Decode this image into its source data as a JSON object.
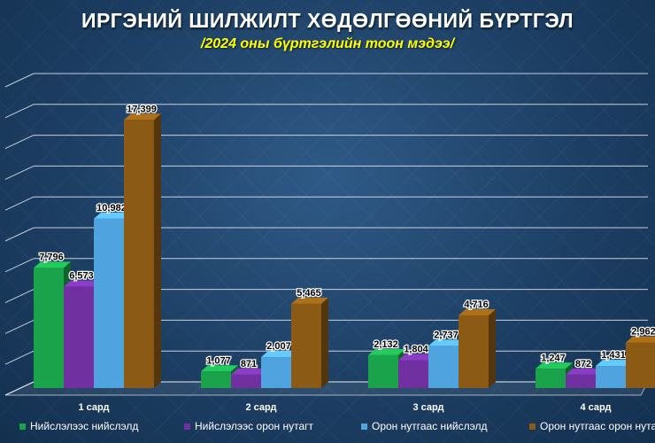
{
  "title": "ИРГЭНИЙ ШИЛЖИЛТ ХӨДӨЛГӨӨНИЙ БҮРТГЭЛ",
  "subtitle": "/2024 оны бүртгэлийн тоон мэдээ/",
  "chart_data": {
    "type": "bar",
    "categories": [
      "1 сард",
      "2 сард",
      "3 сард",
      "4 сард"
    ],
    "series": [
      {
        "name": "Нийслэлээс нийслэлд",
        "values": [
          7796,
          1077,
          2132,
          1247
        ],
        "labels": [
          "7,796",
          "1,077",
          "2,132",
          "1,247"
        ],
        "color": "#1aa34a"
      },
      {
        "name": "Нийслэлээс орон нутагт",
        "values": [
          6573,
          871,
          1804,
          872
        ],
        "labels": [
          "6,573",
          "871",
          "1,804",
          "872"
        ],
        "color": "#7030a0"
      },
      {
        "name": "Орон нутгаас нийслэлд",
        "values": [
          10982,
          2007,
          2737,
          1431
        ],
        "labels": [
          "10,982",
          "2,007",
          "2,737",
          "1,431"
        ],
        "color": "#4fa3df"
      },
      {
        "name": "Орон нутгаас орон нутагт",
        "values": [
          17399,
          5465,
          4716,
          2962
        ],
        "labels": [
          "17,399",
          "5,465",
          "4,716",
          "2,962"
        ],
        "color": "#8b5a14"
      }
    ],
    "ylim": [
      0,
      20000
    ],
    "grid": true,
    "legend": "bottom",
    "style": "3d-bars"
  }
}
